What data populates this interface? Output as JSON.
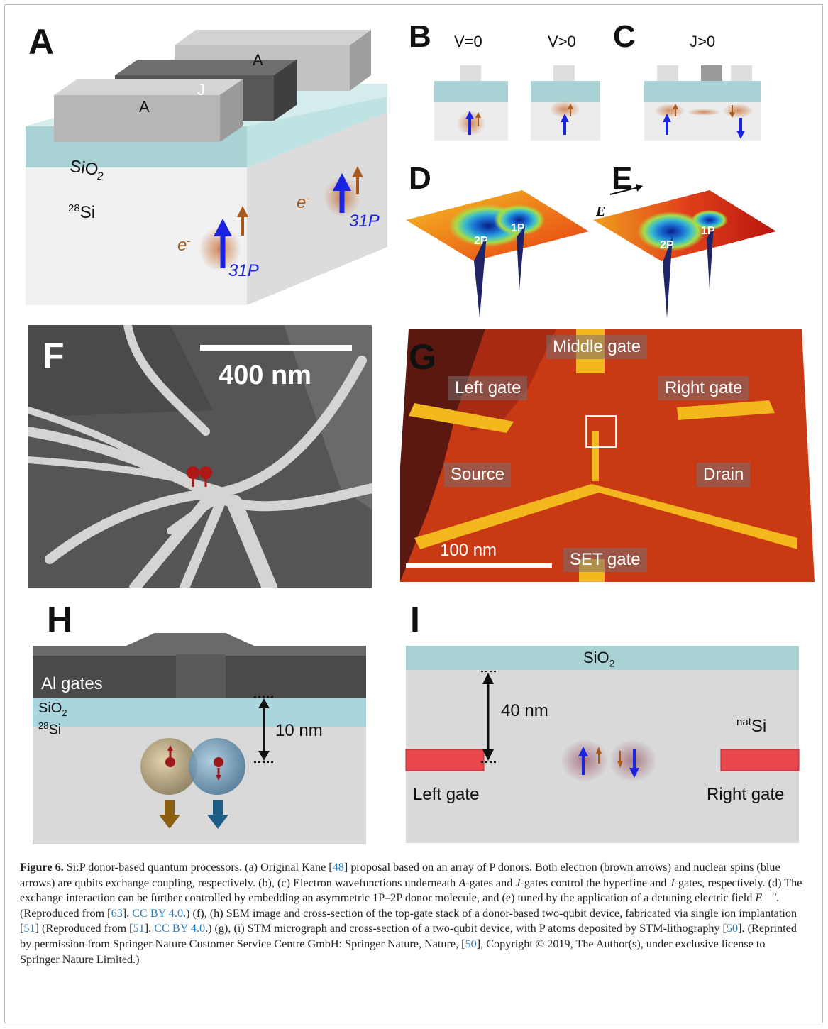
{
  "panels": {
    "A": {
      "letter": "A",
      "gate_left": "A",
      "gate_middle": "J",
      "gate_right": "A",
      "oxide": "SiO",
      "oxide_sub": "2",
      "substrate_sup": "28",
      "substrate": "Si",
      "electron": "e",
      "electron_sup": "-",
      "donor_sup": "31",
      "donor": "P"
    },
    "B": {
      "letter": "B",
      "left_label": "V=0",
      "right_label": "V>0"
    },
    "C": {
      "letter": "C",
      "label": "J>0"
    },
    "D": {
      "letter": "D",
      "label_2p": "2P",
      "label_1p": "1P"
    },
    "E": {
      "letter": "E",
      "field": "E",
      "label_2p": "2P",
      "label_1p": "1P"
    },
    "F": {
      "letter": "F",
      "scalebar": "400 nm"
    },
    "G": {
      "letter": "G",
      "middle_gate": "Middle gate",
      "left_gate": "Left gate",
      "right_gate": "Right gate",
      "source": "Source",
      "drain": "Drain",
      "set_gate": "SET gate",
      "scalebar": "100 nm"
    },
    "H": {
      "letter": "H",
      "gates": "Al gates",
      "oxide": "SiO",
      "oxide_sub": "2",
      "substrate_sup": "28",
      "substrate": "Si",
      "distance": "10 nm"
    },
    "I": {
      "letter": "I",
      "oxide": "SiO",
      "oxide_sub": "2",
      "distance": "40 nm",
      "substrate_sup": "nat",
      "substrate": "Si",
      "left_gate": "Left gate",
      "right_gate": "Right gate"
    }
  },
  "caption": {
    "label": "Figure 6.",
    "p1": " Si:P donor-based quantum processors. (a) Original Kane [",
    "r48": "48",
    "p2": "] proposal based on an array of P donors. Both electron (brown arrows) and nuclear spins (blue arrows) are qubits exchange coupling, respectively. (b), (c) Electron wavefunctions underneath ",
    "ag": "A",
    "p3": "-gates and ",
    "jg": "J",
    "p4": "-gates control the hyperfine and ",
    "jg2": "J",
    "p5": "-gates, respectively. (d) The exchange interaction can be further controlled by embedding an asymmetric 1P–2P donor molecule, and (e) tuned by the application of a detuning electric field ",
    "efield": "E⃗′′",
    "p6": ". (Reproduced from [",
    "r63": "63",
    "p7": "]. ",
    "cc1": "CC BY 4.0",
    "p8": ".) (f), (h) SEM image and cross-section of the top-gate stack of a donor-based two-qubit device, fabricated via single ion implantation [",
    "r51": "51",
    "p9": "] (Reproduced from [",
    "r51b": "51",
    "p10": "]. ",
    "cc2": "CC BY 4.0",
    "p11": ".) (g), (i) STM micrograph and cross-section of a two-qubit device, with P atoms deposited by STM-lithography [",
    "r50": "50",
    "p12": "]. (Reprinted by permission from Springer Nature Customer Service Centre GmbH: Springer Nature, Nature, [",
    "r50b": "50",
    "p13": "], Copyright © 2019, The Author(s), under exclusive license to Springer Nature Limited.)"
  },
  "colors": {
    "blue_arrow": "#1a23e0",
    "brown_arrow": "#a8591c",
    "oxide": "#a9d2d4",
    "gate_red": "#e8474e",
    "stm_red": "#c93a14",
    "stm_gold": "#f2b81e"
  }
}
